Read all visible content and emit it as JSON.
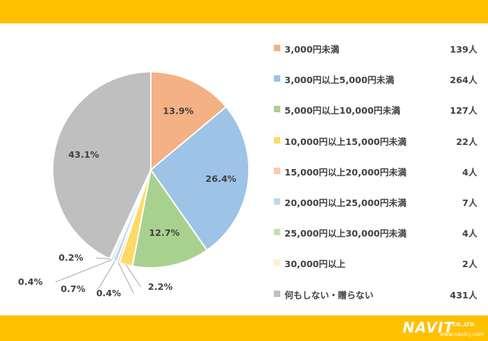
{
  "theme": {
    "bar_color": "#ffc000",
    "logo_color": "#ffffff"
  },
  "logo": {
    "name": "NAVIT",
    "company_suffix": "CO.,LTD.",
    "url": "www.navit-j.com"
  },
  "chart_data": {
    "type": "pie",
    "start_angle_deg": 0,
    "direction": "clockwise",
    "categories": [
      "3,000円未満",
      "3,000円以上5,000円未満",
      "5,000円以上10,000円未満",
      "10,000円以上15,000円未満",
      "15,000円以上20,000円未満",
      "20,000円以上25,000円未満",
      "25,000円以上30,000円未満",
      "30,000円以上",
      "何もしない・贈らない"
    ],
    "values": [
      139,
      264,
      127,
      22,
      4,
      7,
      4,
      2,
      431
    ],
    "counts": [
      "139人",
      "264人",
      "127人",
      "22人",
      "4人",
      "7人",
      "4人",
      "2人",
      "431人"
    ],
    "percent_labels": [
      "13.9%",
      "26.4%",
      "12.7%",
      "2.2%",
      "0.4%",
      "0.7%",
      "0.4%",
      "0.2%",
      "43.1%"
    ],
    "colors": [
      "#f4b183",
      "#9dc3e6",
      "#a9d18e",
      "#ffd966",
      "#f8cbad",
      "#bdd7ee",
      "#c5e0b4",
      "#fff2cc",
      "#bfbfbf"
    ],
    "legend_position": "right"
  }
}
